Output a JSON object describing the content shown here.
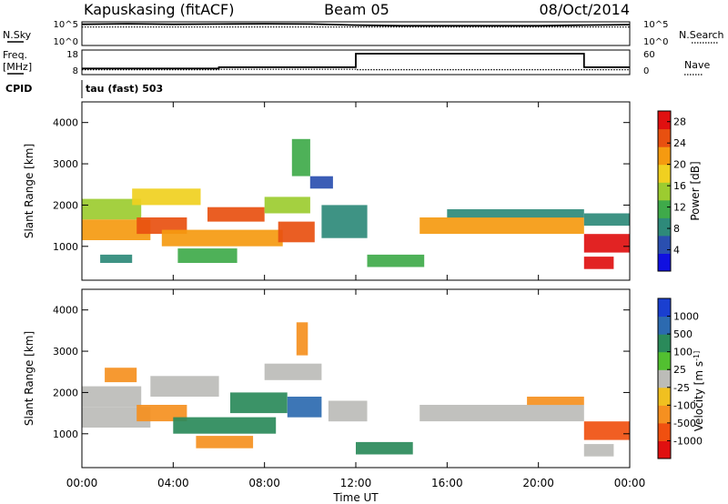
{
  "header": {
    "station": "Kapuskasing (fitACF)",
    "beam": "Beam 05",
    "date": "08/Oct/2014"
  },
  "panel_labels": {
    "nsky": "N.Sky",
    "nsky_ticks": [
      "10^5",
      "10^0"
    ],
    "nsearch": "N.Search",
    "nsearch_ticks": [
      "10^5",
      "10^0"
    ],
    "freq": "Freq.",
    "freq_unit": "[MHz]",
    "freq_ticks": [
      "18",
      "8"
    ],
    "nave": "Nave",
    "nave_ticks": [
      "60",
      "0"
    ],
    "cpid": "CPID",
    "cpid_value": "tau (fast) 503"
  },
  "chart_data": [
    {
      "type": "line",
      "name": "noise-panel",
      "x": [
        "00:00",
        "02:00",
        "04:00",
        "06:00",
        "08:00",
        "10:00",
        "12:00",
        "14:00",
        "16:00",
        "18:00",
        "20:00",
        "22:00",
        "24:00"
      ],
      "series": [
        {
          "name": "N.Sky",
          "values": [
            30000,
            40000,
            30000,
            35000,
            40000,
            35000,
            20000,
            15000,
            15000,
            15000,
            15000,
            20000,
            25000
          ]
        },
        {
          "name": "N.Search",
          "values": [
            8000,
            8000,
            8000,
            8000,
            8000,
            8000,
            8000,
            8000,
            8000,
            8000,
            8000,
            8000,
            8000
          ]
        }
      ],
      "ylabel_left": "N.Sky",
      "ylabel_right": "N.Search",
      "log_scale": true,
      "ylim": [
        1,
        100000
      ]
    },
    {
      "type": "line",
      "name": "freq-nave-panel",
      "x": [
        "00:00",
        "04:00",
        "06:00",
        "12:00",
        "22:00",
        "24:00"
      ],
      "series": [
        {
          "name": "Freq.",
          "values": [
            10.5,
            10.5,
            11,
            16.5,
            11,
            11
          ]
        },
        {
          "name": "Nave",
          "values": [
            12,
            12,
            13,
            12,
            12,
            12
          ]
        }
      ],
      "ylim_left": [
        8,
        18
      ],
      "ylim_right": [
        0,
        60
      ]
    },
    {
      "type": "heatmap",
      "name": "power-panel",
      "xlabel": "",
      "ylabel": "Slant Range [km]",
      "x_ticks": [
        "00:00",
        "04:00",
        "08:00",
        "12:00",
        "16:00",
        "20:00",
        "00:00"
      ],
      "y_ticks": [
        1000,
        2000,
        3000,
        4000
      ],
      "xlim_hours": [
        0,
        24
      ],
      "ylim_km": [
        180,
        4500
      ],
      "colorbar": {
        "label": "Power [dB]",
        "ticks": [
          4,
          8,
          12,
          16,
          20,
          24,
          28
        ],
        "range": [
          0,
          30
        ],
        "colors": [
          "#1010e0",
          "#2a4fb0",
          "#2e8a7a",
          "#3faa4a",
          "#9ccc30",
          "#f0d020",
          "#f59a10",
          "#e85010",
          "#e01010"
        ]
      },
      "regions": [
        {
          "t0": 0.0,
          "t1": 2.6,
          "r0": 1650,
          "r1": 2150,
          "v": 16
        },
        {
          "t0": 0.0,
          "t1": 3.0,
          "r0": 1150,
          "r1": 1650,
          "v": 22
        },
        {
          "t0": 0.8,
          "t1": 2.2,
          "r0": 600,
          "r1": 800,
          "v": 8
        },
        {
          "t0": 2.4,
          "t1": 4.6,
          "r0": 1300,
          "r1": 1700,
          "v": 26
        },
        {
          "t0": 2.2,
          "t1": 5.2,
          "r0": 2000,
          "r1": 2400,
          "v": 18
        },
        {
          "t0": 3.5,
          "t1": 8.8,
          "r0": 1000,
          "r1": 1400,
          "v": 22
        },
        {
          "t0": 5.5,
          "t1": 8.0,
          "r0": 1600,
          "r1": 1950,
          "v": 25
        },
        {
          "t0": 4.2,
          "t1": 6.8,
          "r0": 600,
          "r1": 950,
          "v": 12
        },
        {
          "t0": 8.0,
          "t1": 10.0,
          "r0": 1800,
          "r1": 2200,
          "v": 14
        },
        {
          "t0": 8.6,
          "t1": 10.2,
          "r0": 1100,
          "r1": 1600,
          "v": 24
        },
        {
          "t0": 9.2,
          "t1": 10.0,
          "r0": 2700,
          "r1": 3600,
          "v": 10
        },
        {
          "t0": 10.0,
          "t1": 11.0,
          "r0": 2400,
          "r1": 2700,
          "v": 6
        },
        {
          "t0": 10.5,
          "t1": 12.5,
          "r0": 1200,
          "r1": 2000,
          "v": 7
        },
        {
          "t0": 12.5,
          "t1": 15.0,
          "r0": 500,
          "r1": 800,
          "v": 10
        },
        {
          "t0": 14.8,
          "t1": 22.0,
          "r0": 1300,
          "r1": 1700,
          "v": 20
        },
        {
          "t0": 16.0,
          "t1": 22.0,
          "r0": 1700,
          "r1": 1900,
          "v": 9
        },
        {
          "t0": 22.0,
          "t1": 24.0,
          "r0": 850,
          "r1": 1300,
          "v": 27
        },
        {
          "t0": 22.0,
          "t1": 23.3,
          "r0": 450,
          "r1": 750,
          "v": 27
        },
        {
          "t0": 22.0,
          "t1": 24.0,
          "r0": 1500,
          "r1": 1800,
          "v": 9
        }
      ]
    },
    {
      "type": "heatmap",
      "name": "velocity-panel",
      "xlabel": "Time UT",
      "ylabel": "Slant Range [km]",
      "x_ticks": [
        "00:00",
        "04:00",
        "08:00",
        "12:00",
        "16:00",
        "20:00",
        "00:00"
      ],
      "y_ticks": [
        1000,
        2000,
        3000,
        4000
      ],
      "xlim_hours": [
        0,
        24
      ],
      "ylim_km": [
        180,
        4500
      ],
      "colorbar": {
        "label": "Velocity [m s^-1]",
        "ticks": [
          "1000",
          "500",
          "100",
          "25",
          "-25",
          "-100",
          "-500",
          "-1000"
        ],
        "colors": [
          "#1a3fd0",
          "#2c6ab0",
          "#2a8a5a",
          "#52c030",
          "#bcbcb8",
          "#f0c020",
          "#f59020",
          "#f05010",
          "#e01010"
        ]
      },
      "regions": [
        {
          "t0": 0.0,
          "t1": 2.6,
          "r0": 1650,
          "r1": 2150,
          "v": 0
        },
        {
          "t0": 0.0,
          "t1": 3.0,
          "r0": 1150,
          "r1": 1650,
          "v": 0
        },
        {
          "t0": 1.0,
          "t1": 2.4,
          "r0": 2250,
          "r1": 2600,
          "v": -300
        },
        {
          "t0": 2.4,
          "t1": 4.6,
          "r0": 1300,
          "r1": 1700,
          "v": -300
        },
        {
          "t0": 3.0,
          "t1": 6.0,
          "r0": 1900,
          "r1": 2400,
          "v": 0
        },
        {
          "t0": 4.0,
          "t1": 8.5,
          "r0": 1000,
          "r1": 1400,
          "v": 300
        },
        {
          "t0": 5.0,
          "t1": 7.5,
          "r0": 650,
          "r1": 950,
          "v": -300
        },
        {
          "t0": 6.5,
          "t1": 9.0,
          "r0": 1500,
          "r1": 2000,
          "v": 200
        },
        {
          "t0": 8.0,
          "t1": 10.5,
          "r0": 2300,
          "r1": 2700,
          "v": 0
        },
        {
          "t0": 9.0,
          "t1": 10.5,
          "r0": 1400,
          "r1": 1900,
          "v": 600
        },
        {
          "t0": 9.4,
          "t1": 9.9,
          "r0": 2900,
          "r1": 3700,
          "v": -300
        },
        {
          "t0": 10.8,
          "t1": 12.5,
          "r0": 1300,
          "r1": 1800,
          "v": 0
        },
        {
          "t0": 12.0,
          "t1": 14.5,
          "r0": 500,
          "r1": 800,
          "v": 200
        },
        {
          "t0": 14.8,
          "t1": 22.0,
          "r0": 1300,
          "r1": 1700,
          "v": 0
        },
        {
          "t0": 19.5,
          "t1": 22.0,
          "r0": 1700,
          "r1": 1900,
          "v": -300
        },
        {
          "t0": 22.0,
          "t1": 24.0,
          "r0": 850,
          "r1": 1300,
          "v": -600
        },
        {
          "t0": 22.0,
          "t1": 23.3,
          "r0": 450,
          "r1": 750,
          "v": 0
        }
      ]
    }
  ]
}
